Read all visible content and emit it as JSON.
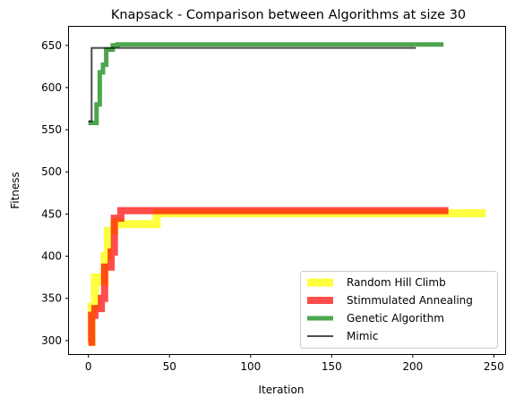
{
  "chart_data": {
    "type": "line",
    "title": "Knapsack - Comparison between Algorithms at size 30",
    "xlabel": "Iteration",
    "ylabel": "Fitness",
    "xlim": [
      -12,
      257
    ],
    "ylim": [
      284,
      672
    ],
    "xticks": [
      0,
      50,
      100,
      150,
      200,
      250
    ],
    "yticks": [
      300,
      350,
      400,
      450,
      500,
      550,
      600,
      650
    ],
    "grid": false,
    "legend_position": "lower-right",
    "series": [
      {
        "name": "Random Hill Climb",
        "color": "#ffff00",
        "alpha": 0.75,
        "width": 9,
        "x": [
          0,
          2,
          2,
          4,
          4,
          7,
          7,
          10,
          10,
          12,
          12,
          16,
          16,
          19,
          19,
          42,
          42,
          245
        ],
        "y": [
          298,
          298,
          340,
          340,
          375,
          375,
          370,
          370,
          400,
          400,
          430,
          430,
          440,
          440,
          438,
          438,
          451,
          451
        ]
      },
      {
        "name": "Stimmulated Annealing",
        "color": "#ff0000",
        "alpha": 0.7,
        "width": 8,
        "x": [
          0,
          2,
          2,
          4,
          4,
          8,
          8,
          10,
          10,
          14,
          14,
          16,
          16,
          20,
          20,
          222
        ],
        "y": [
          298,
          298,
          330,
          330,
          338,
          338,
          350,
          350,
          387,
          387,
          405,
          405,
          445,
          445,
          454,
          454
        ]
      },
      {
        "name": "Genetic Algorithm",
        "color": "#008000",
        "alpha": 0.7,
        "width": 5,
        "x": [
          0,
          5,
          5,
          7,
          7,
          9,
          9,
          11,
          11,
          15,
          15,
          18,
          18,
          219
        ],
        "y": [
          558,
          558,
          580,
          580,
          618,
          618,
          627,
          627,
          645,
          645,
          650,
          650,
          651,
          651
        ]
      },
      {
        "name": "Mimic",
        "color": "#000000",
        "alpha": 0.7,
        "width": 2,
        "x": [
          0,
          2,
          2,
          202
        ],
        "y": [
          560,
          560,
          647,
          647
        ]
      }
    ]
  }
}
